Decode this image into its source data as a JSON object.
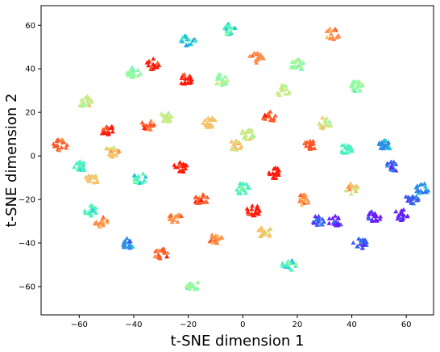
{
  "chart_data": {
    "type": "scatter",
    "title": "",
    "xlabel": "t-SNE dimension 1",
    "ylabel": "t-SNE dimension 2",
    "xlim": [
      -74,
      70
    ],
    "ylim": [
      -73,
      69
    ],
    "xticks": [
      -60,
      -40,
      -20,
      0,
      20,
      40,
      60
    ],
    "yticks": [
      -60,
      -40,
      -20,
      0,
      20,
      40,
      60
    ],
    "xtick_labels": [
      "−60",
      "−40",
      "−20",
      "0",
      "20",
      "40",
      "60"
    ],
    "ytick_labels": [
      "−60",
      "−40",
      "−20",
      "0",
      "20",
      "40",
      "60"
    ],
    "marker": "triangle",
    "grid": false,
    "colormap": "rainbow",
    "colors": [
      "#6a1bff",
      "#3a5cf5",
      "#2d8ee6",
      "#20c4d6",
      "#4ef2c0",
      "#8efca0",
      "#c6ec84",
      "#f6c36c",
      "#ff8e4a",
      "#ff5a2a",
      "#ff1a0a"
    ],
    "clusters": [
      {
        "x": -67,
        "y": 5,
        "c": 9
      },
      {
        "x": -60,
        "y": -5,
        "c": 4
      },
      {
        "x": -58,
        "y": 25,
        "c": 6
      },
      {
        "x": -56,
        "y": -25,
        "c": 4
      },
      {
        "x": -55,
        "y": -10,
        "c": 7
      },
      {
        "x": -52,
        "y": -30,
        "c": 8
      },
      {
        "x": -50,
        "y": 12,
        "c": 10
      },
      {
        "x": -48,
        "y": 2,
        "c": 7
      },
      {
        "x": -42,
        "y": -40,
        "c": 2
      },
      {
        "x": -40,
        "y": 38,
        "c": 5
      },
      {
        "x": -38,
        "y": -10,
        "c": 4
      },
      {
        "x": -35,
        "y": 14,
        "c": 9
      },
      {
        "x": -33,
        "y": 42,
        "c": 10
      },
      {
        "x": -30,
        "y": -45,
        "c": 9
      },
      {
        "x": -28,
        "y": 18,
        "c": 6
      },
      {
        "x": -25,
        "y": -28,
        "c": 8
      },
      {
        "x": -23,
        "y": -5,
        "c": 10
      },
      {
        "x": -21,
        "y": 35,
        "c": 10
      },
      {
        "x": -20,
        "y": 53,
        "c": 3
      },
      {
        "x": -18,
        "y": -60,
        "c": 5
      },
      {
        "x": -15,
        "y": -20,
        "c": 9
      },
      {
        "x": -12,
        "y": 15,
        "c": 7
      },
      {
        "x": -10,
        "y": -38,
        "c": 8
      },
      {
        "x": -8,
        "y": 35,
        "c": 5
      },
      {
        "x": -5,
        "y": 58,
        "c": 4
      },
      {
        "x": -3,
        "y": 5,
        "c": 7
      },
      {
        "x": 0,
        "y": -15,
        "c": 4
      },
      {
        "x": 2,
        "y": 10,
        "c": 6
      },
      {
        "x": 4,
        "y": -25,
        "c": 10
      },
      {
        "x": 5,
        "y": 45,
        "c": 8
      },
      {
        "x": 8,
        "y": -35,
        "c": 7
      },
      {
        "x": 10,
        "y": 18,
        "c": 9
      },
      {
        "x": 12,
        "y": -8,
        "c": 10
      },
      {
        "x": 15,
        "y": 30,
        "c": 6
      },
      {
        "x": 17,
        "y": -50,
        "c": 4
      },
      {
        "x": 20,
        "y": 42,
        "c": 5
      },
      {
        "x": 22,
        "y": -20,
        "c": 8
      },
      {
        "x": 25,
        "y": 5,
        "c": 9
      },
      {
        "x": 28,
        "y": -30,
        "c": 1
      },
      {
        "x": 30,
        "y": 15,
        "c": 6
      },
      {
        "x": 33,
        "y": 56,
        "c": 8
      },
      {
        "x": 34,
        "y": -30,
        "c": 0
      },
      {
        "x": 38,
        "y": 3,
        "c": 4
      },
      {
        "x": 40,
        "y": -15,
        "c": 7
      },
      {
        "x": 42,
        "y": 32,
        "c": 5
      },
      {
        "x": 43,
        "y": -40,
        "c": 1
      },
      {
        "x": 48,
        "y": -28,
        "c": 0
      },
      {
        "x": 52,
        "y": 5,
        "c": 2
      },
      {
        "x": 55,
        "y": -5,
        "c": 1
      },
      {
        "x": 58,
        "y": -27,
        "c": 0
      },
      {
        "x": 62,
        "y": -20,
        "c": 1
      },
      {
        "x": 66,
        "y": -15,
        "c": 2
      }
    ]
  }
}
